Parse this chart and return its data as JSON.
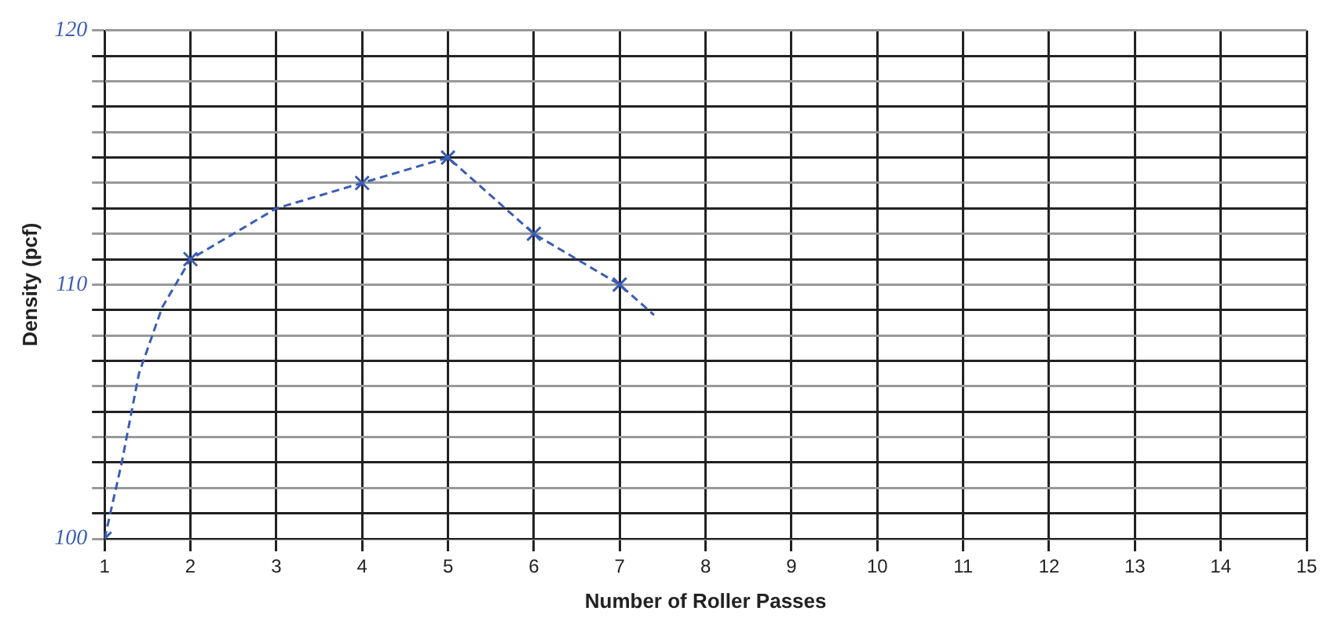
{
  "chart_data": {
    "type": "line",
    "xlabel": "Number of Roller Passes",
    "ylabel": "Density (pcf)",
    "xlim": [
      1,
      15
    ],
    "xticks": [
      1,
      2,
      3,
      4,
      5,
      6,
      7,
      8,
      9,
      10,
      11,
      12,
      13,
      14,
      15
    ],
    "ylim": [
      100,
      120
    ],
    "yticks": [
      100,
      {
        "value": 101,
        "label": null
      },
      {
        "value": 102,
        "label": null
      },
      {
        "value": 103,
        "label": null
      },
      {
        "value": 104,
        "label": null
      },
      {
        "value": 105,
        "label": null
      },
      {
        "value": 106,
        "label": null
      },
      {
        "value": 107,
        "label": null
      },
      {
        "value": 108,
        "label": null
      },
      {
        "value": 109,
        "label": null
      },
      110,
      {
        "value": 111,
        "label": null
      },
      {
        "value": 112,
        "label": null
      },
      {
        "value": 113,
        "label": null
      },
      {
        "value": 114,
        "label": null
      },
      {
        "value": 115,
        "label": null
      },
      {
        "value": 116,
        "label": null
      },
      {
        "value": 117,
        "label": null
      },
      {
        "value": 118,
        "label": null
      },
      {
        "value": 119,
        "label": null
      },
      120
    ],
    "grid": true,
    "legend": false,
    "series": [
      {
        "type": "line",
        "color": "#3a5db4",
        "marker": "none",
        "line_style": "dashed",
        "x": [
          1,
          1.2,
          1.4,
          1.67,
          2,
          3,
          4,
          5,
          6,
          7,
          7.4
        ],
        "values": [
          100,
          103,
          106.5,
          109.1,
          111,
          113,
          114,
          115,
          112,
          110,
          108.8
        ]
      },
      {
        "type": "scatter",
        "color": "#3a5db4",
        "marker": "cross",
        "x": [
          1,
          2,
          4,
          5,
          6,
          7
        ],
        "values": [
          100,
          111,
          114,
          115,
          112,
          110
        ]
      }
    ]
  }
}
